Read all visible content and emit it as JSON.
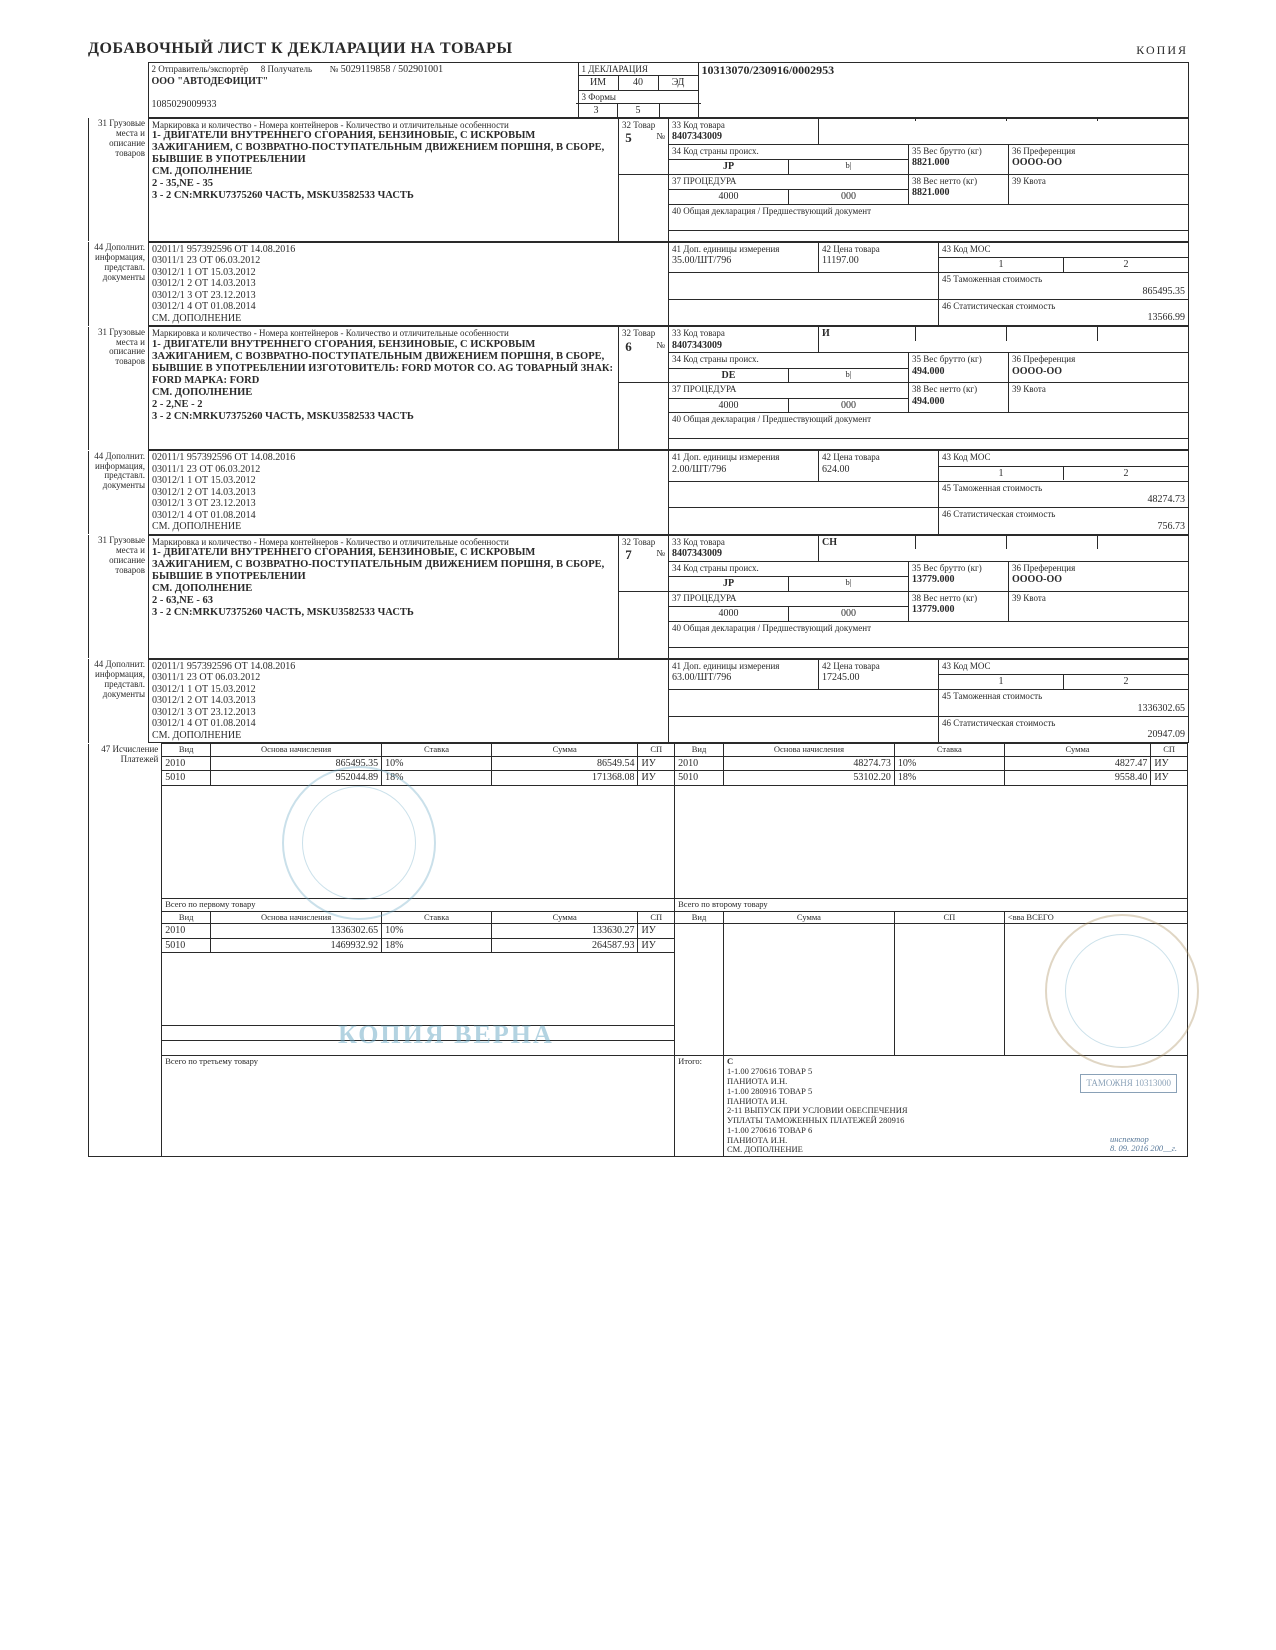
{
  "header": {
    "title": "ДОБАВОЧНЫЙ ЛИСТ К ДЕКЛАРАЦИИ НА ТОВАРЫ",
    "copy": "КОПИЯ",
    "box2_label": "2 Отправитель/экспортёр",
    "box8_label": "8 Получатель",
    "ref_no_label": "№",
    "ref_no": "5029119858 / 502901001",
    "sender": "ООО \"АВТОДЕФИЦИТ\"",
    "sender_id": "1085029009933",
    "declaration_label": "1 ДЕКЛАРАЦИЯ",
    "declaration_id": "10313070/230916/0002953",
    "im": "ИМ",
    "im_val": "40",
    "ed": "ЭД",
    "forms_label": "3 Формы",
    "form_cur": "3",
    "form_total": "5"
  },
  "sections": {
    "side31": "31 Грузовые места и описание товаров",
    "side44": "44 Дополнит. информация, представл. документы",
    "side47": "47 Исчисление Платежей",
    "marking_header": "Маркировка и количество - Номера контейнеров - Количество и отличительные особенности",
    "box32_label": "32 Товар",
    "box32_suffix": "№",
    "box33_label": "33 Код товара",
    "box34_label": "34 Код страны происх.",
    "box35_label": "35 Вес брутто (кг)",
    "box36_label": "36 Преференция",
    "box37_label": "37 ПРОЦЕДУРА",
    "box38_label": "38 Вес нетто (кг)",
    "box39_label": "39 Квота",
    "box40_label": "40 Общая декларация / Предшествующий документ",
    "box41_label": "41 Доп. единицы измерения",
    "box42_label": "42 Цена товара",
    "box43_label": "43 Код МОС",
    "box45_label": "45 Таможенная стоимость",
    "box46_label": "46 Статистическая стоимость"
  },
  "goods": [
    {
      "num": "5",
      "description": "1- ДВИГАТЕЛИ ВНУТРЕННЕГО СГОРАНИЯ, БЕНЗИНОВЫЕ, С ИСКРОВЫМ ЗАЖИГАНИЕМ, С ВОЗВРАТНО-ПОСТУПАТЕЛЬНЫМ ДВИЖЕНИЕМ ПОРШНЯ, В СБОРЕ, БЫВШИЕ В УПОТРЕБЛЕНИИ\nСМ. ДОПОЛНЕНИЕ\n2 - 35,NE - 35\n3 - 2 CN:MRKU7375260 ЧАСТЬ, MSKU3582533 ЧАСТЬ",
      "code33": "8407343009",
      "code33_suffix": "",
      "country": "JP",
      "gross": "8821.000",
      "pref": "ОООО-ОО",
      "proc1": "4000",
      "proc2": "000",
      "net": "8821.000",
      "units": "35.00/ШТ/796",
      "price": "11197.00",
      "mos1": "1",
      "mos2": "2",
      "customs_value": "865495.35",
      "stat_value": "13566.99"
    },
    {
      "num": "6",
      "description": "1- ДВИГАТЕЛИ ВНУТРЕННЕГО СГОРАНИЯ, БЕНЗИНОВЫЕ, С ИСКРОВЫМ ЗАЖИГАНИЕМ, С ВОЗВРАТНО-ПОСТУПАТЕЛЬНЫМ ДВИЖЕНИЕМ ПОРШНЯ, В СБОРЕ, БЫВШИЕ В УПОТРЕБЛЕНИИ ИЗГОТОВИТЕЛЬ: FORD MOTOR CO. AG ТОВАРНЫЙ ЗНАК: FORD МАРКА: FORD\nСМ. ДОПОЛНЕНИЕ\n2 - 2,NE - 2\n3 - 2 CN:MRKU7375260 ЧАСТЬ, MSKU3582533 ЧАСТЬ",
      "code33": "8407343009",
      "code33_suffix": "И",
      "country": "DE",
      "gross": "494.000",
      "pref": "ОООО-ОО",
      "proc1": "4000",
      "proc2": "000",
      "net": "494.000",
      "units": "2.00/ШТ/796",
      "price": "624.00",
      "mos1": "1",
      "mos2": "2",
      "customs_value": "48274.73",
      "stat_value": "756.73"
    },
    {
      "num": "7",
      "description": "1- ДВИГАТЕЛИ ВНУТРЕННЕГО СГОРАНИЯ, БЕНЗИНОВЫЕ, С ИСКРОВЫМ ЗАЖИГАНИЕМ, С ВОЗВРАТНО-ПОСТУПАТЕЛЬНЫМ ДВИЖЕНИЕМ ПОРШНЯ, В СБОРЕ, БЫВШИЕ В УПОТРЕБЛЕНИИ\nСМ. ДОПОЛНЕНИЕ\n2 - 63,NE - 63\n3 - 2 CN:MRKU7375260 ЧАСТЬ, MSKU3582533 ЧАСТЬ",
      "code33": "8407343009",
      "code33_suffix": "CH",
      "country": "JP",
      "gross": "13779.000",
      "pref": "ОООО-ОО",
      "proc1": "4000",
      "proc2": "000",
      "net": "13779.000",
      "units": "63.00/ШТ/796",
      "price": "17245.00",
      "mos1": "1",
      "mos2": "2",
      "customs_value": "1336302.65",
      "stat_value": "20947.09"
    }
  ],
  "docs_common": [
    "02011/1 957392596 ОТ 14.08.2016",
    "03011/1 23 ОТ 06.03.2012",
    "03012/1 1 ОТ 15.03.2012",
    "03012/1 2 ОТ 14.03.2013",
    "03012/1 3 ОТ 23.12.2013",
    "03012/1 4 ОТ 01.08.2014",
    "СМ. ДОПОЛНЕНИЕ"
  ],
  "payments": {
    "headers": {
      "vid": "Вид",
      "basis": "Основа начисления",
      "rate": "Ставка",
      "sum": "Сумма",
      "sp": "СП"
    },
    "left1": {
      "title": "Всего по первому товару",
      "rows": [
        {
          "vid": "2010",
          "basis": "865495.35",
          "rate": "10%",
          "sum": "86549.54",
          "sp": "ИУ"
        },
        {
          "vid": "5010",
          "basis": "952044.89",
          "rate": "18%",
          "sum": "171368.08",
          "sp": "ИУ"
        }
      ]
    },
    "right1": {
      "title": "Всего по второму товару",
      "rows": [
        {
          "vid": "2010",
          "basis": "48274.73",
          "rate": "10%",
          "sum": "4827.47",
          "sp": "ИУ"
        },
        {
          "vid": "5010",
          "basis": "53102.20",
          "rate": "18%",
          "sum": "9558.40",
          "sp": "ИУ"
        }
      ]
    },
    "left2": {
      "title": "Всего по третьему товару",
      "rows": [
        {
          "vid": "2010",
          "basis": "1336302.65",
          "rate": "10%",
          "sum": "133630.27",
          "sp": "ИУ"
        },
        {
          "vid": "5010",
          "basis": "1469932.92",
          "rate": "18%",
          "sum": "264587.93",
          "sp": "ИУ"
        }
      ]
    },
    "right2": {
      "sum_header": "Сумма",
      "total_marker": "<вва ВСЕГО",
      "itogo": "Итого:",
      "c_label": "С",
      "c_lines": [
        "1-1.00 270616 ТОВАР 5",
        "ПАНИОТА И.Н.",
        "1-1.00 280916 ТОВАР 5",
        "ПАНИОТА И.Н.",
        "2-11 ВЫПУСК ПРИ УСЛОВИИ ОБЕСПЕЧЕНИЯ",
        "УПЛАТЫ ТАМОЖЕННЫХ ПЛАТЕЖЕЙ 280916",
        "1-1.00 270616 ТОВАР 6",
        "ПАНИОТА И.Н.",
        "СМ. ДОПОЛНЕНИЕ"
      ]
    }
  },
  "watermarks": {
    "copy_true": "КОПИЯ ВЕРНА",
    "stamp_text": "ТАМОЖНЯ   10313000",
    "inspector": "инспектор",
    "date": "8. 09. 2016    200__г."
  }
}
